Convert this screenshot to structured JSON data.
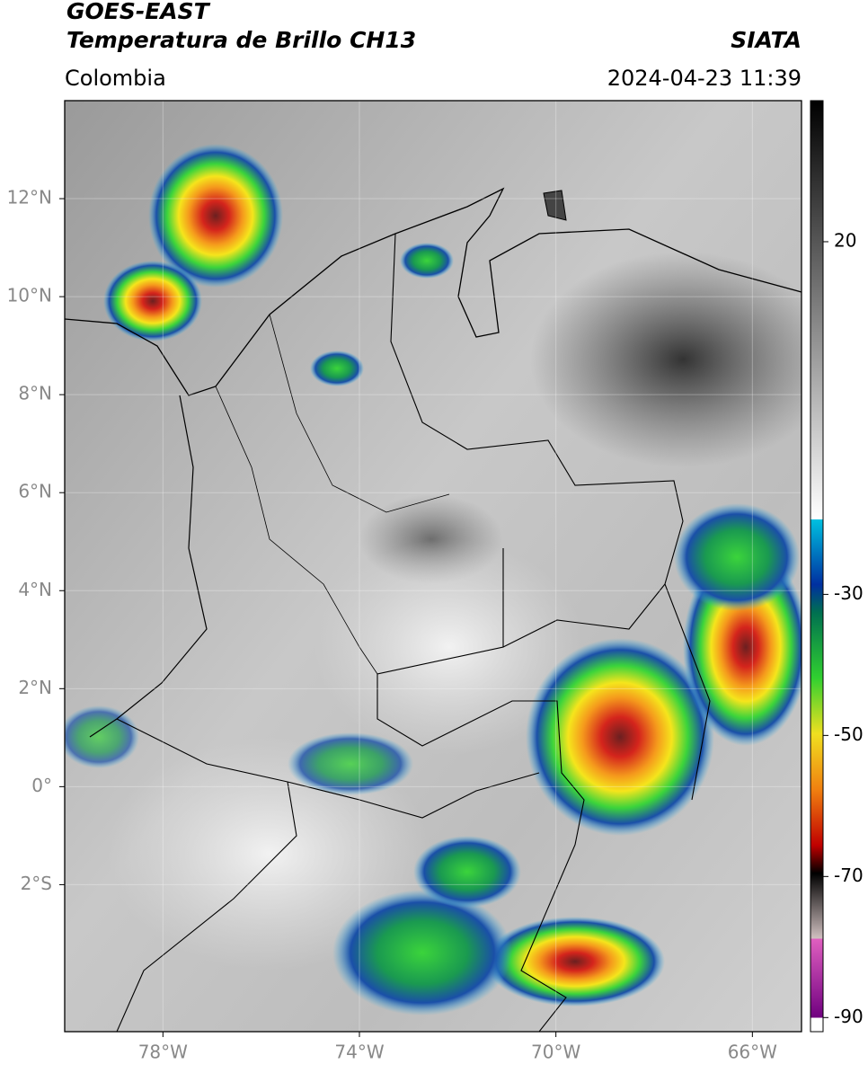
{
  "header": {
    "satellite": "GOES-EAST",
    "product": "Temperatura de Brillo CH13",
    "region": "Colombia",
    "source": "SIATA",
    "timestamp": "2024-04-23 11:39"
  },
  "map": {
    "xlim": [
      -80,
      -65
    ],
    "ylim": [
      -5,
      14
    ],
    "xticks": [
      {
        "value": -78,
        "label": "78°W"
      },
      {
        "value": -74,
        "label": "74°W"
      },
      {
        "value": -70,
        "label": "70°W"
      },
      {
        "value": -66,
        "label": "66°W"
      }
    ],
    "yticks": [
      {
        "value": -2,
        "label": "2°S"
      },
      {
        "value": 0,
        "label": "0°"
      },
      {
        "value": 2,
        "label": "2°N"
      },
      {
        "value": 4,
        "label": "4°N"
      },
      {
        "value": 6,
        "label": "6°N"
      },
      {
        "value": 8,
        "label": "8°N"
      },
      {
        "value": 10,
        "label": "10°N"
      },
      {
        "value": 12,
        "label": "12°N"
      }
    ],
    "grid": true
  },
  "colorbar": {
    "lim": [
      -92,
      40
    ],
    "ticks": [
      20,
      -30,
      -50,
      -70,
      -90
    ]
  }
}
